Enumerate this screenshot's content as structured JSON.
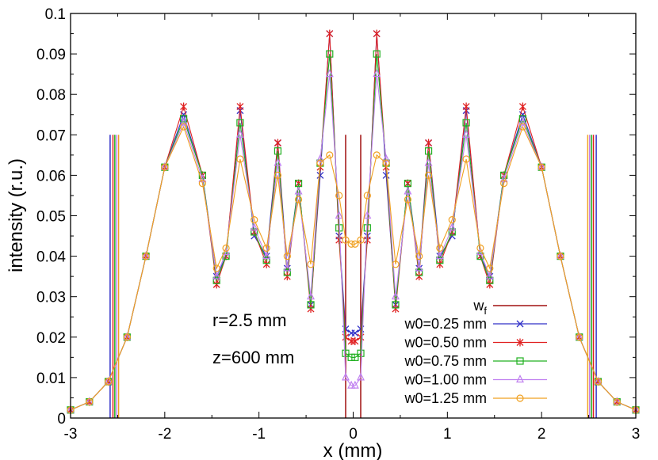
{
  "chart_data": {
    "type": "line",
    "title": "",
    "xlabel": "x (mm)",
    "ylabel": "intensity (r.u.)",
    "xlim": [
      -3,
      3
    ],
    "ylim": [
      0,
      0.1
    ],
    "xticks": [
      "-3",
      "-2",
      "-1",
      "0",
      "1",
      "2",
      "3"
    ],
    "yticks": [
      "0",
      "0.01",
      "0.02",
      "0.03",
      "0.04",
      "0.05",
      "0.06",
      "0.07",
      "0.08",
      "0.09",
      "0.1"
    ],
    "grid": false,
    "legend_position": "bottom-right",
    "annotations": [
      "r=2.5 mm",
      "z=600 mm"
    ],
    "vertical_lines": {
      "name": "w",
      "name_sub": "f",
      "color": "#a01010",
      "inner_x": [
        -0.08,
        0.08
      ],
      "inner_height": 0.07,
      "outer_height": 0.07
    },
    "series": [
      {
        "name": "w0=0.25 mm",
        "color": "#3030c8",
        "marker": "x",
        "outer_line_x": 2.58,
        "x": [
          -3.0,
          -2.8,
          -2.6,
          -2.4,
          -2.2,
          -2.0,
          -1.8,
          -1.6,
          -1.45,
          -1.35,
          -1.2,
          -1.05,
          -0.92,
          -0.8,
          -0.7,
          -0.58,
          -0.45,
          -0.35,
          -0.25,
          -0.15,
          -0.08,
          -0.02,
          0.02,
          0.08,
          0.15,
          0.25,
          0.35,
          0.45,
          0.58,
          0.7,
          0.8,
          0.92,
          1.05,
          1.2,
          1.35,
          1.45,
          1.6,
          1.8,
          2.0,
          2.2,
          2.4,
          2.6,
          2.8,
          3.0
        ],
        "y": [
          0.002,
          0.004,
          0.009,
          0.02,
          0.04,
          0.062,
          0.075,
          0.06,
          0.035,
          0.04,
          0.076,
          0.045,
          0.04,
          0.068,
          0.037,
          0.058,
          0.028,
          0.06,
          0.095,
          0.045,
          0.022,
          0.021,
          0.021,
          0.022,
          0.045,
          0.095,
          0.06,
          0.028,
          0.058,
          0.037,
          0.068,
          0.04,
          0.045,
          0.076,
          0.04,
          0.035,
          0.06,
          0.075,
          0.062,
          0.04,
          0.02,
          0.009,
          0.004,
          0.002
        ]
      },
      {
        "name": "w0=0.50 mm",
        "color": "#e02020",
        "marker": "*",
        "outer_line_x": 2.55,
        "x": [
          -3.0,
          -2.8,
          -2.6,
          -2.4,
          -2.2,
          -2.0,
          -1.8,
          -1.6,
          -1.45,
          -1.35,
          -1.2,
          -1.05,
          -0.92,
          -0.8,
          -0.7,
          -0.58,
          -0.45,
          -0.35,
          -0.25,
          -0.15,
          -0.08,
          -0.02,
          0.02,
          0.08,
          0.15,
          0.25,
          0.35,
          0.45,
          0.58,
          0.7,
          0.8,
          0.92,
          1.05,
          1.2,
          1.35,
          1.45,
          1.6,
          1.8,
          2.0,
          2.2,
          2.4,
          2.6,
          2.8,
          3.0
        ],
        "y": [
          0.002,
          0.004,
          0.009,
          0.02,
          0.04,
          0.062,
          0.077,
          0.06,
          0.033,
          0.04,
          0.077,
          0.046,
          0.038,
          0.068,
          0.035,
          0.058,
          0.027,
          0.062,
          0.095,
          0.044,
          0.02,
          0.019,
          0.019,
          0.02,
          0.044,
          0.095,
          0.062,
          0.027,
          0.058,
          0.035,
          0.068,
          0.038,
          0.046,
          0.077,
          0.04,
          0.033,
          0.06,
          0.077,
          0.062,
          0.04,
          0.02,
          0.009,
          0.004,
          0.002
        ]
      },
      {
        "name": "w0=0.75 mm",
        "color": "#20b020",
        "marker": "square",
        "outer_line_x": 2.53,
        "x": [
          -3.0,
          -2.8,
          -2.6,
          -2.4,
          -2.2,
          -2.0,
          -1.8,
          -1.6,
          -1.45,
          -1.35,
          -1.2,
          -1.05,
          -0.92,
          -0.8,
          -0.7,
          -0.58,
          -0.45,
          -0.35,
          -0.25,
          -0.15,
          -0.08,
          -0.02,
          0.02,
          0.08,
          0.15,
          0.25,
          0.35,
          0.45,
          0.58,
          0.7,
          0.8,
          0.92,
          1.05,
          1.2,
          1.35,
          1.45,
          1.6,
          1.8,
          2.0,
          2.2,
          2.4,
          2.6,
          2.8,
          3.0
        ],
        "y": [
          0.002,
          0.004,
          0.009,
          0.02,
          0.04,
          0.062,
          0.074,
          0.06,
          0.034,
          0.04,
          0.073,
          0.046,
          0.039,
          0.066,
          0.036,
          0.058,
          0.028,
          0.063,
          0.09,
          0.047,
          0.016,
          0.015,
          0.015,
          0.016,
          0.047,
          0.09,
          0.063,
          0.028,
          0.058,
          0.036,
          0.066,
          0.039,
          0.046,
          0.073,
          0.04,
          0.034,
          0.06,
          0.074,
          0.062,
          0.04,
          0.02,
          0.009,
          0.004,
          0.002
        ]
      },
      {
        "name": "w0=1.00 mm",
        "color": "#c080f0",
        "marker": "triangle",
        "outer_line_x": 2.51,
        "x": [
          -3.0,
          -2.8,
          -2.6,
          -2.4,
          -2.2,
          -2.0,
          -1.8,
          -1.6,
          -1.45,
          -1.35,
          -1.2,
          -1.05,
          -0.92,
          -0.8,
          -0.7,
          -0.58,
          -0.45,
          -0.35,
          -0.25,
          -0.15,
          -0.08,
          -0.02,
          0.02,
          0.08,
          0.15,
          0.25,
          0.35,
          0.45,
          0.58,
          0.7,
          0.8,
          0.92,
          1.05,
          1.2,
          1.35,
          1.45,
          1.6,
          1.8,
          2.0,
          2.2,
          2.4,
          2.6,
          2.8,
          3.0
        ],
        "y": [
          0.002,
          0.004,
          0.009,
          0.02,
          0.04,
          0.062,
          0.073,
          0.059,
          0.035,
          0.041,
          0.07,
          0.047,
          0.04,
          0.063,
          0.037,
          0.056,
          0.03,
          0.064,
          0.085,
          0.05,
          0.01,
          0.008,
          0.008,
          0.01,
          0.05,
          0.085,
          0.064,
          0.03,
          0.056,
          0.037,
          0.063,
          0.04,
          0.047,
          0.07,
          0.041,
          0.035,
          0.059,
          0.073,
          0.062,
          0.04,
          0.02,
          0.009,
          0.004,
          0.002
        ]
      },
      {
        "name": "w0=1.25 mm",
        "color": "#f0a020",
        "marker": "circle",
        "outer_line_x": 2.49,
        "x": [
          -3.0,
          -2.8,
          -2.6,
          -2.4,
          -2.2,
          -2.0,
          -1.8,
          -1.6,
          -1.45,
          -1.35,
          -1.2,
          -1.05,
          -0.92,
          -0.8,
          -0.7,
          -0.58,
          -0.45,
          -0.35,
          -0.25,
          -0.15,
          -0.08,
          -0.02,
          0.02,
          0.08,
          0.15,
          0.25,
          0.35,
          0.45,
          0.58,
          0.7,
          0.8,
          0.92,
          1.05,
          1.2,
          1.35,
          1.45,
          1.6,
          1.8,
          2.0,
          2.2,
          2.4,
          2.6,
          2.8,
          3.0
        ],
        "y": [
          0.002,
          0.004,
          0.009,
          0.02,
          0.04,
          0.062,
          0.072,
          0.058,
          0.037,
          0.042,
          0.064,
          0.049,
          0.042,
          0.06,
          0.04,
          0.054,
          0.038,
          0.063,
          0.065,
          0.055,
          0.044,
          0.043,
          0.043,
          0.044,
          0.055,
          0.065,
          0.063,
          0.038,
          0.054,
          0.04,
          0.06,
          0.042,
          0.049,
          0.064,
          0.042,
          0.037,
          0.058,
          0.072,
          0.062,
          0.04,
          0.02,
          0.009,
          0.004,
          0.002
        ]
      }
    ]
  }
}
